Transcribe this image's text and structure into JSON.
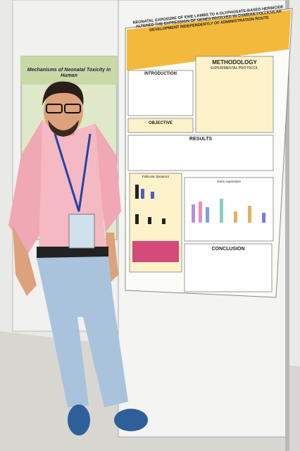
{
  "poster": {
    "title": "NEONATAL EXPOSURE OF EWE LAMBS TO A GLYPHOSATE-BASED HERBICIDE ALTERED THE EXPRESSION OF GENES INVOLVED IN OVARIAN FOLLICULAR DEVELOPMENT INDEPENDENTLY OF ADMINISTRATION ROUTE",
    "sections": {
      "introduction": "INTRODUCTION",
      "methodology": "METHODOLOGY",
      "experimental_protocol": "EXPERIMENTAL PROTOCOL",
      "objective": "OBJECTIVE",
      "results": "RESULTS",
      "follicular_dynamics": "Follicular dynamics",
      "gene_expression": "Gene expression",
      "conclusion": "CONCLUSION"
    }
  },
  "background_poster": {
    "title": "Mechanisms of Neonatal Toxicity in Human"
  }
}
